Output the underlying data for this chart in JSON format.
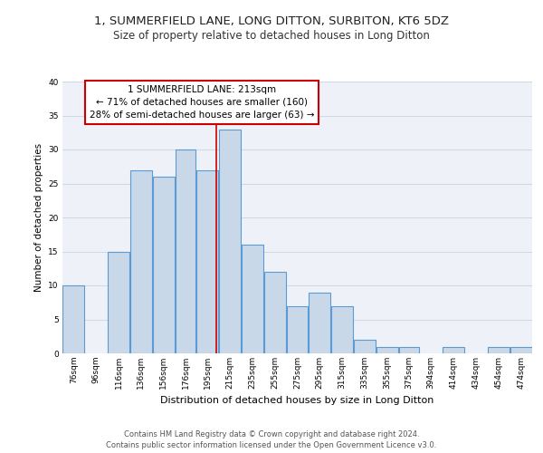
{
  "title": "1, SUMMERFIELD LANE, LONG DITTON, SURBITON, KT6 5DZ",
  "subtitle": "Size of property relative to detached houses in Long Ditton",
  "xlabel": "Distribution of detached houses by size in Long Ditton",
  "ylabel": "Number of detached properties",
  "bar_labels": [
    "76sqm",
    "96sqm",
    "116sqm",
    "136sqm",
    "156sqm",
    "176sqm",
    "195sqm",
    "215sqm",
    "235sqm",
    "255sqm",
    "275sqm",
    "295sqm",
    "315sqm",
    "335sqm",
    "355sqm",
    "375sqm",
    "394sqm",
    "414sqm",
    "434sqm",
    "454sqm",
    "474sqm"
  ],
  "bar_values": [
    10,
    0,
    15,
    27,
    26,
    30,
    27,
    33,
    16,
    12,
    7,
    9,
    7,
    2,
    1,
    1,
    0,
    1,
    0,
    1,
    1
  ],
  "bar_left_edges": [
    76,
    96,
    116,
    136,
    156,
    176,
    195,
    215,
    235,
    255,
    275,
    295,
    315,
    335,
    355,
    375,
    394,
    414,
    434,
    454,
    474
  ],
  "bar_widths": [
    20,
    20,
    20,
    20,
    20,
    19,
    20,
    20,
    20,
    20,
    20,
    20,
    20,
    20,
    20,
    19,
    20,
    20,
    20,
    20,
    20
  ],
  "bar_color": "#c8d8e8",
  "bar_edge_color": "#5b9bd5",
  "property_line_x": 213,
  "property_line_label": "1 SUMMERFIELD LANE: 213sqm",
  "annotation_line1": "← 71% of detached houses are smaller (160)",
  "annotation_line2": "28% of semi-detached houses are larger (63) →",
  "annotation_box_color": "#ffffff",
  "annotation_box_edge": "#cc0000",
  "property_line_color": "#cc0000",
  "ylim": [
    0,
    40
  ],
  "yticks": [
    0,
    5,
    10,
    15,
    20,
    25,
    30,
    35,
    40
  ],
  "grid_color": "#d0d8e8",
  "bg_color": "#eef2f8",
  "footer_line1": "Contains HM Land Registry data © Crown copyright and database right 2024.",
  "footer_line2": "Contains public sector information licensed under the Open Government Licence v3.0.",
  "title_fontsize": 9.5,
  "subtitle_fontsize": 8.5,
  "xlabel_fontsize": 8,
  "ylabel_fontsize": 7.5,
  "tick_fontsize": 6.5,
  "annotation_fontsize": 7.5,
  "footer_fontsize": 6
}
